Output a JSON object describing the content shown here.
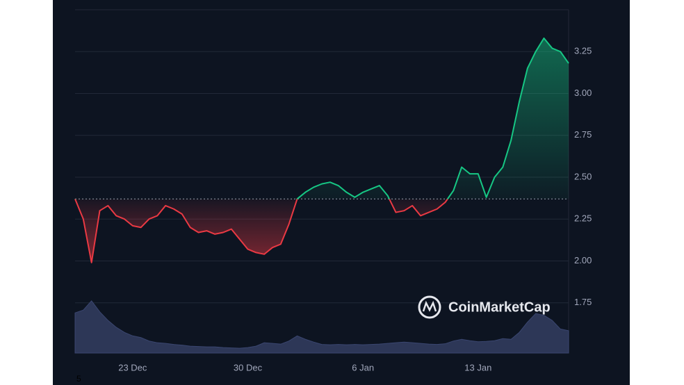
{
  "chart_data": {
    "type": "line",
    "categories": [
      null,
      null,
      null,
      null,
      null,
      null,
      null,
      "23 Dec",
      null,
      null,
      null,
      null,
      null,
      null,
      null,
      null,
      null,
      null,
      null,
      null,
      null,
      "30 Dec",
      null,
      null,
      null,
      null,
      null,
      null,
      null,
      null,
      null,
      null,
      null,
      null,
      null,
      "6 Jan",
      null,
      null,
      null,
      null,
      null,
      null,
      null,
      null,
      null,
      null,
      null,
      null,
      null,
      "13 Jan",
      null,
      null,
      null,
      null,
      null,
      null,
      null,
      null,
      null,
      null,
      null
    ],
    "series": [
      {
        "name": "Price",
        "values": [
          2.37,
          2.25,
          1.99,
          2.3,
          2.33,
          2.27,
          2.25,
          2.21,
          2.2,
          2.25,
          2.27,
          2.33,
          2.31,
          2.28,
          2.2,
          2.17,
          2.18,
          2.16,
          2.17,
          2.19,
          2.13,
          2.07,
          2.05,
          2.04,
          2.08,
          2.1,
          2.22,
          2.37,
          2.41,
          2.44,
          2.46,
          2.47,
          2.45,
          2.41,
          2.38,
          2.41,
          2.43,
          2.45,
          2.39,
          2.29,
          2.3,
          2.33,
          2.27,
          2.29,
          2.31,
          2.35,
          2.42,
          2.56,
          2.52,
          2.52,
          2.38,
          2.5,
          2.56,
          2.72,
          2.95,
          3.15,
          3.25,
          3.33,
          3.27,
          3.25,
          3.18
        ]
      },
      {
        "name": "Volume",
        "axis": "y2",
        "values": [
          11.7,
          12.5,
          15.2,
          12,
          9.5,
          7.5,
          6,
          5,
          4.5,
          3.5,
          3,
          2.8,
          2.5,
          2.3,
          2,
          1.9,
          1.8,
          1.8,
          1.6,
          1.5,
          1.4,
          1.6,
          2,
          3,
          2.8,
          2.6,
          3.5,
          5,
          4,
          3.2,
          2.5,
          2.4,
          2.5,
          2.4,
          2.5,
          2.4,
          2.5,
          2.6,
          2.8,
          3,
          3.2,
          3,
          2.8,
          2.6,
          2.5,
          2.7,
          3.5,
          4,
          3.6,
          3.3,
          3.4,
          3.6,
          4.2,
          4,
          6,
          9,
          11.5,
          11,
          9.5,
          7,
          6.5
        ]
      }
    ],
    "up_color": "#16c784",
    "down_color": "#ea3943",
    "volume_color": "#2d3757",
    "baseline": 2.37,
    "ylim": [
      1.45,
      3.5
    ],
    "yticks": [
      1.75,
      {
        "value": 2,
        "label": "2.00"
      },
      2.25,
      {
        "value": 2.5,
        "label": "2.50"
      },
      2.75,
      {
        "value": 3,
        "label": "3.00"
      },
      3.25
    ],
    "y2lim": [
      0,
      100
    ],
    "grid": true,
    "watermark": "CoinMarketCap",
    "footnote": "5"
  }
}
